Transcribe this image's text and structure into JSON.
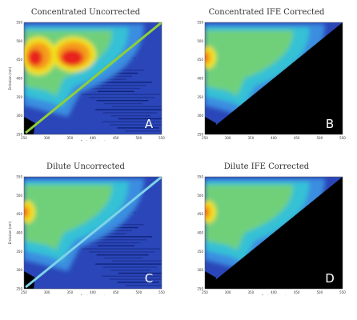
{
  "chart_data": [
    {
      "type": "heatmap",
      "title": "Concentrated Uncorrected",
      "letter": "A",
      "xlabel": "Excitation (nm)",
      "ylabel": "Emission (nm)",
      "x_ticks": [
        "250",
        "300",
        "350",
        "400",
        "450",
        "500",
        "550"
      ],
      "y_ticks": [
        "550",
        "500",
        "450",
        "400",
        "350",
        "300",
        "250"
      ],
      "scatter_line": "green",
      "masked_below_diagonal": false
    },
    {
      "type": "heatmap",
      "title": "Concentrated IFE Corrected",
      "letter": "B",
      "xlabel": "",
      "ylabel": "",
      "x_ticks": [
        "250",
        "300",
        "350",
        "400",
        "450",
        "500",
        "550"
      ],
      "y_ticks": [
        "550",
        "500",
        "450",
        "400",
        "350",
        "300",
        "250"
      ],
      "scatter_line": "none",
      "masked_below_diagonal": true
    },
    {
      "type": "heatmap",
      "title": "Dilute Uncorrected",
      "letter": "C",
      "xlabel": "Excitation (nm)",
      "ylabel": "Emission (nm)",
      "x_ticks": [
        "250",
        "300",
        "350",
        "400",
        "450",
        "500",
        "550"
      ],
      "y_ticks": [
        "550",
        "500",
        "450",
        "400",
        "350",
        "300",
        "250"
      ],
      "scatter_line": "cyan",
      "masked_below_diagonal": false
    },
    {
      "type": "heatmap",
      "title": "Dilute IFE Corrected",
      "letter": "D",
      "xlabel": "Excitation (nm)",
      "ylabel": "",
      "x_ticks": [
        "250",
        "300",
        "350",
        "400",
        "450",
        "500",
        "550"
      ],
      "y_ticks": [
        "550",
        "500",
        "450",
        "400",
        "350",
        "300",
        "250"
      ],
      "scatter_line": "none",
      "masked_below_diagonal": true
    }
  ],
  "colors": {
    "background_blue": "#2a46b8",
    "mask": "#000000",
    "green_line": "#8fcf3a",
    "cyan_line": "#7fd3e8",
    "contour_1": "#3a8de0",
    "contour_2": "#36c1d6",
    "contour_3": "#6fd07a",
    "contour_4": "#f2e21c",
    "contour_5": "#f59b1e",
    "contour_6": "#e8241d"
  }
}
